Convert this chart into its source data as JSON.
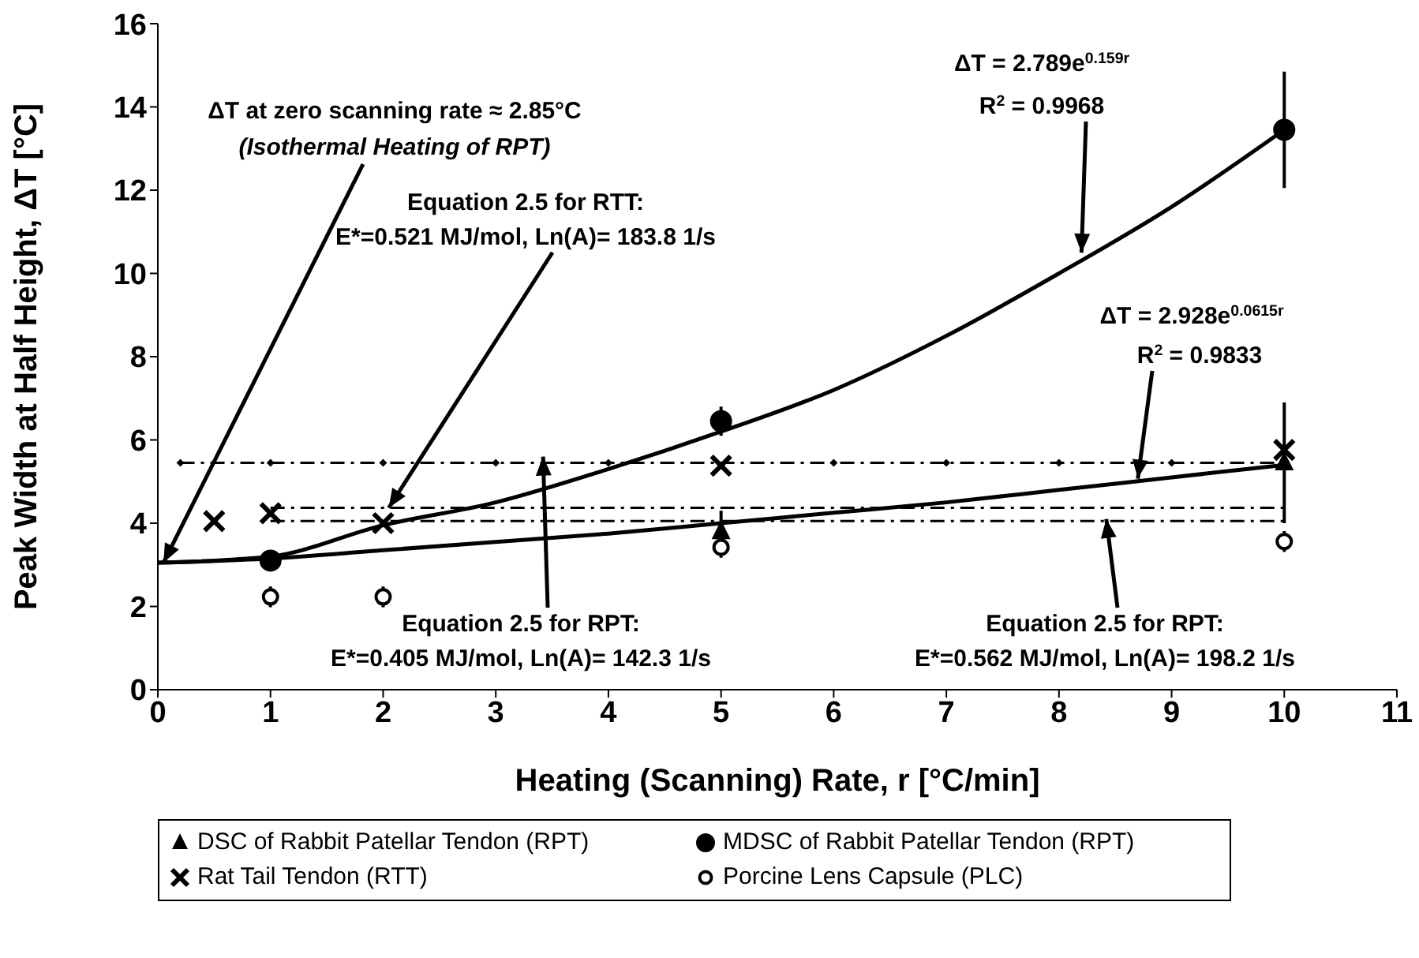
{
  "chart_data": {
    "type": "scatter",
    "xlabel": "Heating (Scanning) Rate, r [°C/min]",
    "ylabel": "Peak Width at Half Height, ΔT [°C]",
    "xlim": [
      0,
      11
    ],
    "xticks": [
      0,
      1,
      2,
      3,
      4,
      5,
      6,
      7,
      8,
      9,
      10,
      11
    ],
    "ylim": [
      0,
      16
    ],
    "yticks": [
      0,
      2,
      4,
      6,
      8,
      10,
      12,
      14,
      16
    ],
    "grid": false,
    "legend": "bottom",
    "series": [
      {
        "name": "DSC of Rabbit Patellar Tendon (RPT)",
        "marker": "triangle",
        "color": "#000000",
        "x": [
          5,
          10
        ],
        "values": [
          3.8,
          5.45
        ],
        "errors": [
          0.5,
          1.45
        ]
      },
      {
        "name": "MDSC of Rabbit Patellar Tendon (RPT)",
        "marker": "circle",
        "color": "#000000",
        "x": [
          1,
          5,
          10
        ],
        "values": [
          3.1,
          6.45,
          13.45
        ],
        "errors": [
          null,
          0.35,
          1.4
        ]
      },
      {
        "name": "Rat Tail Tendon (RTT)",
        "marker": "cross",
        "color": "#000000",
        "x": [
          0.5,
          1,
          2,
          5,
          10
        ],
        "values": [
          4.05,
          4.24,
          4.0,
          5.38,
          5.76
        ]
      },
      {
        "name": "Porcine Lens Capsule (PLC)",
        "marker": "circle",
        "color": "#000000",
        "x": [
          1,
          2,
          5,
          10
        ],
        "values": [
          2.23,
          2.23,
          3.42,
          3.56
        ],
        "errors": [
          0.25,
          0.25,
          0.25,
          0.25
        ]
      },
      {
        "type": "line",
        "marker": "none",
        "line_style": "solid",
        "color": "#000000",
        "x": [
          0,
          1,
          2,
          3,
          4,
          5,
          6,
          7,
          8,
          9,
          10
        ],
        "values": [
          3.05,
          3.2,
          3.95,
          4.5,
          5.3,
          6.2,
          7.2,
          8.5,
          10.0,
          11.6,
          13.45
        ]
      },
      {
        "type": "line",
        "marker": "none",
        "line_style": "solid",
        "color": "#000000",
        "x": [
          0,
          1,
          2,
          3,
          4,
          5,
          6,
          7,
          8,
          9,
          10
        ],
        "values": [
          3.05,
          3.15,
          3.35,
          3.55,
          3.75,
          4.0,
          4.25,
          4.5,
          4.8,
          5.1,
          5.4
        ]
      },
      {
        "type": "line",
        "marker": "diamond",
        "line_style": "dashed",
        "color": "#000000",
        "x": [
          0.2,
          0.5,
          1,
          2,
          3,
          4,
          5,
          6,
          7,
          8,
          9,
          10
        ],
        "values": [
          5.45,
          null,
          5.45,
          5.45,
          5.45,
          5.45,
          null,
          5.45,
          5.45,
          5.45,
          5.45,
          5.45
        ]
      },
      {
        "type": "line",
        "marker": "none",
        "line_style": "dashed",
        "color": "#000000",
        "x": [
          1,
          10
        ],
        "values": [
          4.37,
          4.37
        ]
      },
      {
        "type": "line",
        "marker": "none",
        "line_style": "dashed",
        "color": "#000000",
        "x": [
          1,
          10
        ],
        "values": [
          4.05,
          4.05
        ]
      }
    ],
    "annotations": [
      "ΔT at zero scanning rate ≈ 2.85°C",
      {
        "text": "(Isothermal Heating of RPT)",
        "x": 0.05,
        "y": 3.05
      },
      "Equation 2.5 for RTT:",
      {
        "text": "E*=0.521 MJ/mol, Ln(A)= 183.8 1/s",
        "x": 2.05,
        "y": 4.37
      },
      "ΔT = 2.789e$^{0.159r}$",
      {
        "text": "R$^{2}$ = 0.9968",
        "x": 8.2,
        "y": 10.5
      },
      "ΔT = 2.928e$^{0.0615r}$",
      {
        "text": "R$^{2}$ = 0.9833",
        "x": 8.7,
        "y": 5.07
      },
      {
        "text": "Equation 2.5 for RPT:",
        "x": 3.42,
        "y": 5.6
      },
      "E*=0.405 MJ/mol, Ln(A)= 142.3 1/s",
      {
        "text": "Equation 2.5 for RPT:",
        "x": 8.42,
        "y": 4.1
      },
      "E*=0.562 MJ/mol, Ln(A)= 198.2 1/s"
    ]
  }
}
